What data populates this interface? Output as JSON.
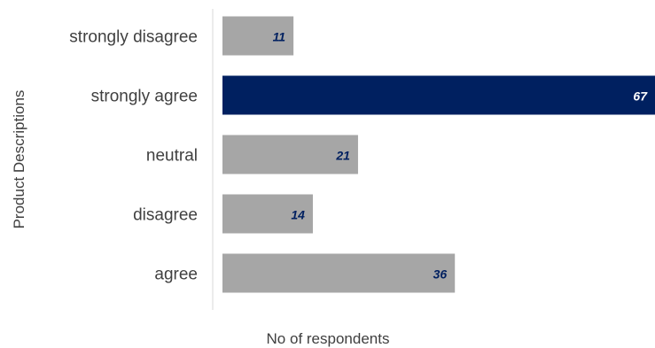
{
  "chart_data": {
    "type": "bar",
    "orientation": "horizontal",
    "categories": [
      "strongly disagree",
      "strongly agree",
      "neutral",
      "disagree",
      "agree"
    ],
    "values": [
      11,
      67,
      21,
      14,
      36
    ],
    "xlabel": "No of respondents",
    "ylabel": "Product Descriptions",
    "xlim": [
      0,
      67
    ],
    "grid": false,
    "legend": "none",
    "highlight_category": "strongly agree",
    "colors": {
      "bar": "#a6a6a6",
      "highlight_bar": "#002060",
      "value_label": "#002060",
      "highlight_value_label": "#ffffff",
      "axis_line": "#d9d9d9",
      "text": "#404040"
    }
  }
}
